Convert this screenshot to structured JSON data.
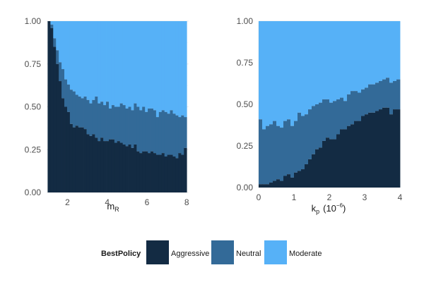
{
  "colors": {
    "aggressive": "#132b43",
    "neutral": "#336a98",
    "moderate": "#56b1f7",
    "grid": "#ebebeb",
    "tick_text": "#4d4d4d"
  },
  "legend": {
    "title": "BestPolicy",
    "entries": [
      "Aggressive",
      "Neutral",
      "Moderate"
    ],
    "placement": "bottom"
  },
  "chart_data": [
    {
      "type": "area",
      "stacked": "fill",
      "xlabel_main": "m",
      "xlabel_sub": "R",
      "ylim": [
        0,
        1
      ],
      "xlim": [
        0.95,
        8.1
      ],
      "x_ticks": [
        2,
        4,
        6,
        8
      ],
      "y_ticks": [
        0,
        0.25,
        0.5,
        0.75,
        1
      ],
      "y_tick_labels": [
        "0.00",
        "0.25",
        "0.50",
        "0.75",
        "1.00"
      ],
      "grid": true,
      "bin_width": 0.14,
      "x": [
        1.0,
        1.14,
        1.28,
        1.42,
        1.56,
        1.7,
        1.84,
        1.98,
        2.12,
        2.26,
        2.4,
        2.54,
        2.68,
        2.82,
        2.96,
        3.1,
        3.24,
        3.38,
        3.52,
        3.66,
        3.8,
        3.94,
        4.08,
        4.22,
        4.36,
        4.5,
        4.64,
        4.78,
        4.92,
        5.06,
        5.2,
        5.34,
        5.48,
        5.62,
        5.76,
        5.9,
        6.04,
        6.18,
        6.32,
        6.46,
        6.6,
        6.74,
        6.88,
        7.02,
        7.16,
        7.3,
        7.44,
        7.58,
        7.72,
        7.86
      ],
      "aggressive": [
        1.0,
        0.96,
        0.85,
        0.75,
        0.65,
        0.55,
        0.5,
        0.47,
        0.4,
        0.38,
        0.39,
        0.38,
        0.38,
        0.37,
        0.34,
        0.33,
        0.34,
        0.32,
        0.3,
        0.32,
        0.3,
        0.3,
        0.31,
        0.31,
        0.29,
        0.3,
        0.29,
        0.28,
        0.27,
        0.28,
        0.26,
        0.28,
        0.24,
        0.23,
        0.24,
        0.24,
        0.23,
        0.24,
        0.23,
        0.22,
        0.22,
        0.23,
        0.21,
        0.22,
        0.22,
        0.21,
        0.2,
        0.23,
        0.22,
        0.26
      ],
      "aggressive_plus_neutral": [
        1.0,
        0.98,
        0.9,
        0.83,
        0.76,
        0.72,
        0.66,
        0.63,
        0.6,
        0.59,
        0.57,
        0.56,
        0.55,
        0.56,
        0.54,
        0.52,
        0.54,
        0.56,
        0.52,
        0.53,
        0.51,
        0.53,
        0.49,
        0.51,
        0.5,
        0.5,
        0.52,
        0.51,
        0.49,
        0.5,
        0.48,
        0.52,
        0.5,
        0.48,
        0.5,
        0.47,
        0.49,
        0.49,
        0.48,
        0.44,
        0.47,
        0.48,
        0.47,
        0.46,
        0.48,
        0.46,
        0.45,
        0.44,
        0.45,
        0.44
      ]
    },
    {
      "type": "area",
      "stacked": "fill",
      "xlabel_main": "k",
      "xlabel_sub": "p",
      "xlabel_unit_open": "(10",
      "xlabel_unit_exp": "−6",
      "xlabel_unit_close": ")",
      "ylim": [
        0,
        1
      ],
      "xlim": [
        0,
        4
      ],
      "x_ticks": [
        0,
        1,
        2,
        3,
        4
      ],
      "y_ticks": [
        0,
        0.25,
        0.5,
        0.75,
        1
      ],
      "y_tick_labels": [
        "0.00",
        "0.25",
        "0.50",
        "0.75",
        "1.00"
      ],
      "grid": true,
      "bin_width": 0.1,
      "x": [
        0.0,
        0.1,
        0.2,
        0.3,
        0.4,
        0.5,
        0.6,
        0.7,
        0.8,
        0.9,
        1.0,
        1.1,
        1.2,
        1.3,
        1.4,
        1.5,
        1.6,
        1.7,
        1.8,
        1.9,
        2.0,
        2.1,
        2.2,
        2.3,
        2.4,
        2.5,
        2.6,
        2.7,
        2.8,
        2.9,
        3.0,
        3.1,
        3.2,
        3.3,
        3.4,
        3.5,
        3.6,
        3.7,
        3.8,
        3.9
      ],
      "aggressive": [
        0.02,
        0.02,
        0.02,
        0.03,
        0.04,
        0.05,
        0.04,
        0.07,
        0.08,
        0.06,
        0.09,
        0.1,
        0.11,
        0.14,
        0.17,
        0.2,
        0.23,
        0.24,
        0.28,
        0.3,
        0.29,
        0.29,
        0.32,
        0.35,
        0.35,
        0.37,
        0.38,
        0.4,
        0.4,
        0.43,
        0.44,
        0.45,
        0.45,
        0.46,
        0.47,
        0.48,
        0.48,
        0.44,
        0.47,
        0.47
      ],
      "aggressive_plus_neutral": [
        0.41,
        0.35,
        0.37,
        0.38,
        0.4,
        0.37,
        0.36,
        0.4,
        0.41,
        0.37,
        0.4,
        0.45,
        0.43,
        0.44,
        0.47,
        0.49,
        0.5,
        0.51,
        0.53,
        0.53,
        0.51,
        0.52,
        0.53,
        0.54,
        0.52,
        0.56,
        0.58,
        0.58,
        0.57,
        0.59,
        0.6,
        0.62,
        0.62,
        0.63,
        0.64,
        0.65,
        0.66,
        0.63,
        0.64,
        0.65
      ]
    }
  ]
}
